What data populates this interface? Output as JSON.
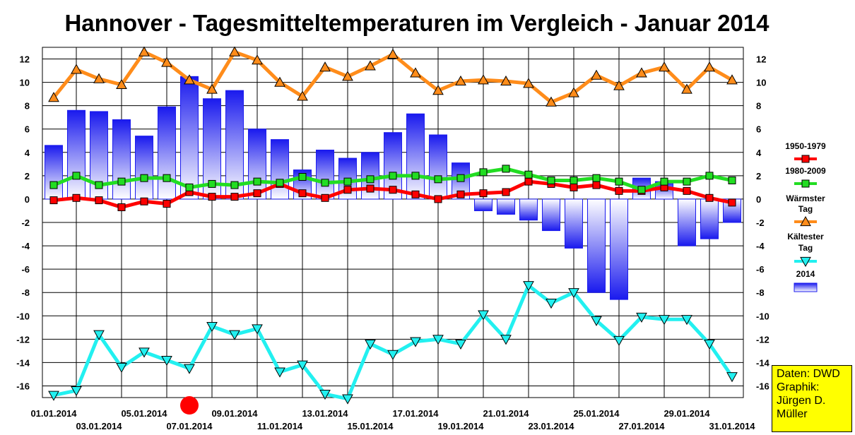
{
  "chart_data": {
    "type": "bar",
    "title": "Hannover - Tagesmitteltemperaturen im Vergleich - Januar 2014",
    "ylim": [
      -17,
      13
    ],
    "yticks": [
      12,
      10,
      8,
      6,
      4,
      2,
      0,
      -2,
      -4,
      -6,
      -8,
      -10,
      -12,
      -14,
      -16
    ],
    "x_tick_labels": [
      "01.01.2014",
      "03.01.2014",
      "05.01.2014",
      "07.01.2014",
      "09.01.2014",
      "11.01.2014",
      "13.01.2014",
      "15.01.2014",
      "17.01.2014",
      "19.01.2014",
      "21.01.2014",
      "23.01.2014",
      "25.01.2014",
      "27.01.2014",
      "29.01.2014",
      "31.01.2014"
    ],
    "x_tick_days": [
      1,
      3,
      5,
      7,
      9,
      11,
      13,
      15,
      17,
      19,
      21,
      23,
      25,
      27,
      29,
      31
    ],
    "days": [
      1,
      2,
      3,
      4,
      5,
      6,
      7,
      8,
      9,
      10,
      11,
      12,
      13,
      14,
      15,
      16,
      17,
      18,
      19,
      20,
      21,
      22,
      23,
      24,
      25,
      26,
      27,
      28,
      29,
      30,
      31
    ],
    "series": [
      {
        "name": "1950-1979",
        "type": "line",
        "color": "#ff0000",
        "marker": "square",
        "values": [
          -0.1,
          0.1,
          -0.1,
          -0.7,
          -0.2,
          -0.4,
          0.6,
          0.2,
          0.2,
          0.5,
          1.3,
          0.5,
          0.1,
          0.8,
          0.9,
          0.8,
          0.4,
          0.0,
          0.4,
          0.5,
          0.6,
          1.5,
          1.3,
          1.0,
          1.2,
          0.7,
          0.7,
          1.0,
          0.7,
          0.1,
          -0.3
        ]
      },
      {
        "name": "1980-2009",
        "type": "line",
        "color": "#22dd22",
        "marker": "square",
        "values": [
          1.2,
          2.0,
          1.2,
          1.5,
          1.8,
          1.8,
          1.0,
          1.3,
          1.2,
          1.5,
          1.4,
          1.9,
          1.4,
          1.5,
          1.7,
          2.0,
          2.0,
          1.7,
          1.8,
          2.3,
          2.6,
          2.1,
          1.6,
          1.6,
          1.8,
          1.5,
          0.8,
          1.5,
          1.5,
          2.0,
          1.6
        ]
      },
      {
        "name": "Wärmster Tag",
        "type": "line",
        "color": "#ff8c1a",
        "marker": "triangle-up",
        "values": [
          8.7,
          11.1,
          10.3,
          9.8,
          12.6,
          11.7,
          10.2,
          9.4,
          12.6,
          11.9,
          10.0,
          8.8,
          11.3,
          10.5,
          11.4,
          12.4,
          10.8,
          9.3,
          10.1,
          10.2,
          10.1,
          9.9,
          8.3,
          9.1,
          10.6,
          9.7,
          10.8,
          11.3,
          9.4,
          11.3,
          10.2
        ]
      },
      {
        "name": "Kältester Tag",
        "type": "line",
        "color": "#22f0f0",
        "marker": "triangle-down",
        "values": [
          -16.8,
          -16.4,
          -11.6,
          -14.4,
          -13.1,
          -13.8,
          -14.5,
          -10.9,
          -11.6,
          -11.1,
          -14.8,
          -14.2,
          -16.7,
          -17.1,
          -12.4,
          -13.3,
          -12.2,
          -12.0,
          -12.4,
          -9.9,
          -12.0,
          -7.4,
          -8.9,
          -8.0,
          -10.4,
          -12.1,
          -10.1,
          -10.3,
          -10.3,
          -12.4,
          -15.2
        ]
      },
      {
        "name": "2014",
        "type": "bar",
        "values": [
          4.6,
          7.6,
          7.5,
          6.8,
          5.4,
          7.9,
          10.5,
          8.6,
          9.3,
          6.0,
          5.1,
          2.5,
          4.2,
          3.5,
          4.0,
          5.7,
          7.3,
          5.5,
          3.1,
          -1.0,
          -1.3,
          -1.8,
          -2.7,
          -4.2,
          -8.0,
          -8.6,
          1.8,
          1.5,
          -4.0,
          -3.4,
          -2.0
        ]
      }
    ],
    "legend": {
      "placement": "right",
      "entries": [
        "1950-1979",
        "1980-2009",
        "Wärmster",
        "Tag",
        "Kältester",
        "Tag",
        "2014"
      ]
    },
    "grid": true
  },
  "credit": {
    "lines": [
      "Daten: DWD",
      "Graphik:",
      "Jürgen D.",
      "Müller"
    ]
  },
  "colors": {
    "grid": "#000000",
    "bar_dark": "#1a1aee",
    "bar_light": "#ffffff",
    "marker_today": "#ff0000"
  }
}
